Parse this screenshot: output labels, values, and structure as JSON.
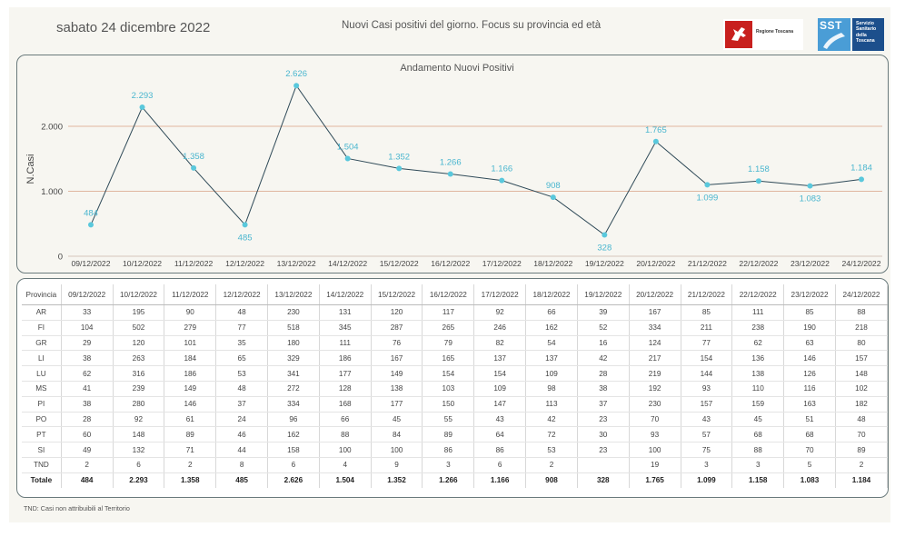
{
  "header": {
    "date": "sabato 24 dicembre 2022",
    "subtitle": "Nuovi Casi positivi del giorno. Focus su provincia ed età",
    "logo_regione": "Regione Toscana",
    "logo_sst": "SST",
    "logo_sst_text": [
      "Servizio",
      "Sanitario",
      "della",
      "Toscana"
    ]
  },
  "chart_data": {
    "type": "line",
    "title": "Andamento Nuovi Positivi",
    "ylabel": "N.Casi",
    "xlabel": "",
    "x": [
      "09/12/2022",
      "10/12/2022",
      "11/12/2022",
      "12/12/2022",
      "13/12/2022",
      "14/12/2022",
      "15/12/2022",
      "16/12/2022",
      "17/12/2022",
      "18/12/2022",
      "19/12/2022",
      "20/12/2022",
      "21/12/2022",
      "22/12/2022",
      "23/12/2022",
      "24/12/2022"
    ],
    "values": [
      484,
      2293,
      1358,
      485,
      2626,
      1504,
      1352,
      1266,
      1166,
      908,
      328,
      1765,
      1099,
      1158,
      1083,
      1184
    ],
    "value_labels": [
      "484",
      "2.293",
      "1.358",
      "485",
      "2.626",
      "1.504",
      "1.352",
      "1.266",
      "1.166",
      "908",
      "328",
      "1.765",
      "1.099",
      "1.158",
      "1.083",
      "1.184"
    ],
    "yticks": [
      0,
      1000,
      2000
    ],
    "ytick_labels": [
      "0",
      "1.000",
      "2.000"
    ],
    "ylim": [
      0,
      2700
    ],
    "grid": "horizontal",
    "colors": {
      "line": "#2f4a58",
      "marker": "#5ac8dc",
      "label": "#4ab6cf",
      "grid": "#d9a085"
    }
  },
  "table": {
    "corner": "Provincia",
    "columns": [
      "09/12/2022",
      "10/12/2022",
      "11/12/2022",
      "12/12/2022",
      "13/12/2022",
      "14/12/2022",
      "15/12/2022",
      "16/12/2022",
      "17/12/2022",
      "18/12/2022",
      "19/12/2022",
      "20/12/2022",
      "21/12/2022",
      "22/12/2022",
      "23/12/2022",
      "24/12/2022"
    ],
    "rows": [
      {
        "label": "AR",
        "cells": [
          "33",
          "195",
          "90",
          "48",
          "230",
          "131",
          "120",
          "117",
          "92",
          "66",
          "39",
          "167",
          "85",
          "111",
          "85",
          "88"
        ]
      },
      {
        "label": "FI",
        "cells": [
          "104",
          "502",
          "279",
          "77",
          "518",
          "345",
          "287",
          "265",
          "246",
          "162",
          "52",
          "334",
          "211",
          "238",
          "190",
          "218"
        ]
      },
      {
        "label": "GR",
        "cells": [
          "29",
          "120",
          "101",
          "35",
          "180",
          "111",
          "76",
          "79",
          "82",
          "54",
          "16",
          "124",
          "77",
          "62",
          "63",
          "80"
        ]
      },
      {
        "label": "LI",
        "cells": [
          "38",
          "263",
          "184",
          "65",
          "329",
          "186",
          "167",
          "165",
          "137",
          "137",
          "42",
          "217",
          "154",
          "136",
          "146",
          "157"
        ]
      },
      {
        "label": "LU",
        "cells": [
          "62",
          "316",
          "186",
          "53",
          "341",
          "177",
          "149",
          "154",
          "154",
          "109",
          "28",
          "219",
          "144",
          "138",
          "126",
          "148"
        ]
      },
      {
        "label": "MS",
        "cells": [
          "41",
          "239",
          "149",
          "48",
          "272",
          "128",
          "138",
          "103",
          "109",
          "98",
          "38",
          "192",
          "93",
          "110",
          "116",
          "102"
        ]
      },
      {
        "label": "PI",
        "cells": [
          "38",
          "280",
          "146",
          "37",
          "334",
          "168",
          "177",
          "150",
          "147",
          "113",
          "37",
          "230",
          "157",
          "159",
          "163",
          "182"
        ]
      },
      {
        "label": "PO",
        "cells": [
          "28",
          "92",
          "61",
          "24",
          "96",
          "66",
          "45",
          "55",
          "43",
          "42",
          "23",
          "70",
          "43",
          "45",
          "51",
          "48"
        ]
      },
      {
        "label": "PT",
        "cells": [
          "60",
          "148",
          "89",
          "46",
          "162",
          "88",
          "84",
          "89",
          "64",
          "72",
          "30",
          "93",
          "57",
          "68",
          "68",
          "70"
        ]
      },
      {
        "label": "SI",
        "cells": [
          "49",
          "132",
          "71",
          "44",
          "158",
          "100",
          "100",
          "86",
          "86",
          "53",
          "23",
          "100",
          "75",
          "88",
          "70",
          "89"
        ]
      },
      {
        "label": "TND",
        "cells": [
          "2",
          "6",
          "2",
          "8",
          "6",
          "4",
          "9",
          "3",
          "6",
          "2",
          "",
          "19",
          "3",
          "3",
          "5",
          "2"
        ]
      }
    ],
    "total": {
      "label": "Totale",
      "cells": [
        "484",
        "2.293",
        "1.358",
        "485",
        "2.626",
        "1.504",
        "1.352",
        "1.266",
        "1.166",
        "908",
        "328",
        "1.765",
        "1.099",
        "1.158",
        "1.083",
        "1.184"
      ]
    }
  },
  "footnote": "TND:  Casi non attribuibili al Territorio"
}
